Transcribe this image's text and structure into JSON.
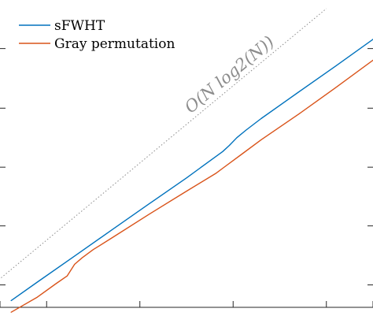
{
  "chart_data": {
    "type": "line",
    "title": "",
    "xlabel": "",
    "ylabel": "",
    "xlim": [
      0,
      100
    ],
    "ylim": [
      0,
      100
    ],
    "grid": false,
    "legend_position": "top-left",
    "series": [
      {
        "name": "sFWHT",
        "color": "#0072BD",
        "x": [
          3,
          10,
          20,
          30,
          40,
          50,
          59.7,
          61.5,
          63.5,
          66,
          70,
          80,
          90,
          100
        ],
        "y": [
          2.2,
          8.2,
          16.7,
          25.2,
          33.7,
          42.1,
          50.7,
          52.7,
          55.2,
          57.7,
          61.4,
          70.0,
          78.5,
          87.2
        ]
      },
      {
        "name": "Gray permutation",
        "color": "#D95319",
        "x": [
          3,
          10,
          15,
          18,
          20,
          22,
          25,
          30,
          40,
          50,
          58,
          60,
          65,
          70,
          80,
          90,
          100
        ],
        "y": [
          -1.6,
          3.3,
          7.7,
          10.2,
          14.0,
          16.1,
          18.8,
          22.6,
          30.3,
          37.8,
          43.7,
          45.5,
          50.0,
          54.5,
          62.8,
          71.5,
          80.4
        ]
      }
    ],
    "reference": {
      "label": "O(N log2(N))",
      "x": [
        -1,
        87.5
      ],
      "y": [
        8.3,
        97.2
      ]
    },
    "x_ticks": [
      0,
      12.5,
      37.5,
      62.5,
      87.5,
      100
    ],
    "y_ticks": [
      7.3,
      26.5,
      45.6,
      64.8,
      84.2
    ]
  }
}
